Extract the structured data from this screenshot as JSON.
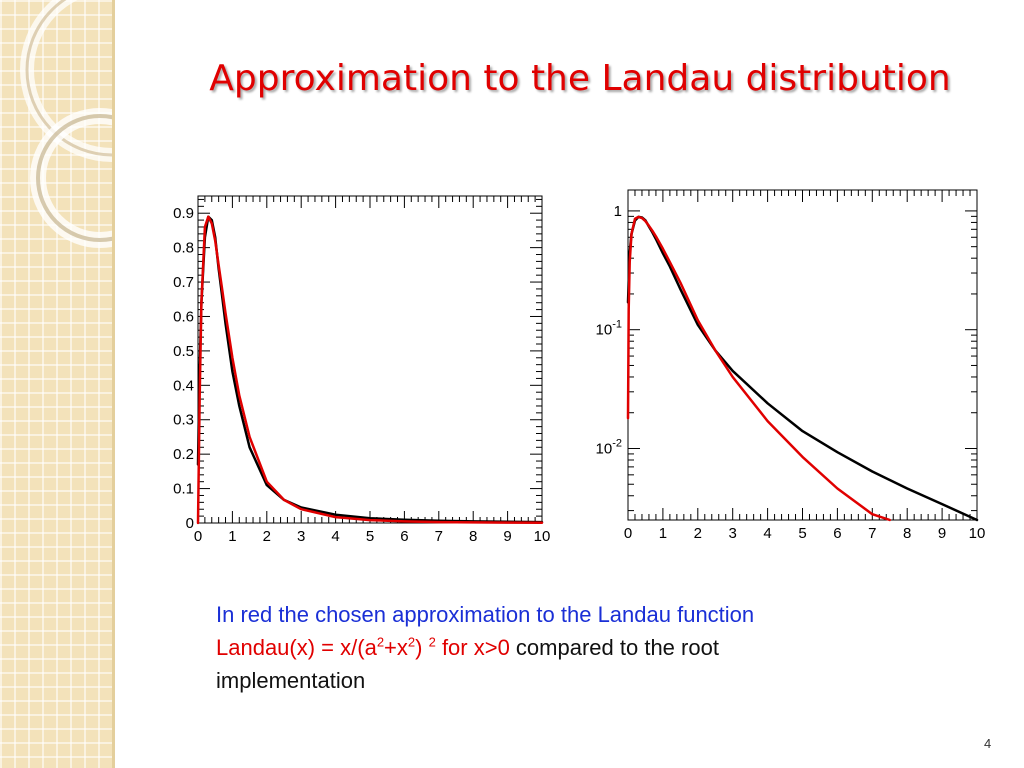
{
  "title": "Approximation to the Landau distribution",
  "caption": {
    "line1": "In red the chosen approximation to the Landau function",
    "formula_a": "Landau(x) = x/(a",
    "sup1": "2",
    "formula_b": "+x",
    "sup2": "2",
    "formula_c": ") ",
    "sup3": "2",
    "formula_d": "  for x>0",
    "line2_rest": "  compared to the root",
    "line3": "implementation"
  },
  "page_number": "4",
  "colors": {
    "approximation": "#e00000",
    "root": "#000000",
    "title": "#e00000",
    "caption_text": "#1a2fd6"
  },
  "chart_data": [
    {
      "type": "line",
      "title": "",
      "xlabel": "",
      "ylabel": "",
      "xlim": [
        0,
        10
      ],
      "ylim": [
        0,
        0.95
      ],
      "yscale": "linear",
      "x_ticks": [
        "0",
        "1",
        "2",
        "3",
        "4",
        "5",
        "6",
        "7",
        "8",
        "9",
        "10"
      ],
      "y_ticks": [
        "0",
        "0.1",
        "0.2",
        "0.3",
        "0.4",
        "0.5",
        "0.6",
        "0.7",
        "0.8",
        "0.9"
      ],
      "grid": false,
      "series": [
        {
          "color": "#000000",
          "x": [
            0,
            0.05,
            0.1,
            0.2,
            0.3,
            0.4,
            0.5,
            0.6,
            0.7,
            0.8,
            1.0,
            1.2,
            1.5,
            2.0,
            2.5,
            3.0,
            4.0,
            5.0,
            6.0,
            7.0,
            8.0,
            9.0,
            10.0
          ],
          "y": [
            0.17,
            0.45,
            0.64,
            0.83,
            0.89,
            0.88,
            0.83,
            0.74,
            0.66,
            0.58,
            0.44,
            0.34,
            0.22,
            0.11,
            0.067,
            0.045,
            0.024,
            0.014,
            0.0093,
            0.0064,
            0.0046,
            0.0034,
            0.0025
          ]
        },
        {
          "color": "#e00000",
          "x": [
            0,
            0.05,
            0.1,
            0.2,
            0.3,
            0.4,
            0.5,
            0.6,
            0.7,
            0.8,
            1.0,
            1.2,
            1.5,
            2.0,
            2.5,
            3.0,
            4.0,
            5.0,
            6.0,
            7.0,
            8.0,
            9.0,
            10.0
          ],
          "y": [
            0.0,
            0.37,
            0.64,
            0.86,
            0.89,
            0.87,
            0.82,
            0.75,
            0.68,
            0.61,
            0.48,
            0.37,
            0.25,
            0.12,
            0.067,
            0.04,
            0.017,
            0.0085,
            0.0046,
            0.0027,
            0.0017,
            0.0011,
            0.0007
          ]
        }
      ]
    },
    {
      "type": "line",
      "title": "",
      "xlabel": "",
      "ylabel": "",
      "xlim": [
        0,
        10
      ],
      "ylim": [
        0.0025,
        1.5
      ],
      "yscale": "log",
      "x_ticks": [
        "0",
        "1",
        "2",
        "3",
        "4",
        "5",
        "6",
        "7",
        "8",
        "9",
        "10"
      ],
      "y_ticks": [
        {
          "value": 1,
          "base": "1",
          "exp": ""
        },
        {
          "value": 0.1,
          "base": "10",
          "exp": "-1"
        },
        {
          "value": 0.01,
          "base": "10",
          "exp": "-2"
        }
      ],
      "grid": false,
      "series": [
        {
          "color": "#000000",
          "x": [
            0,
            0.05,
            0.1,
            0.2,
            0.3,
            0.4,
            0.5,
            0.6,
            0.7,
            0.8,
            1.0,
            1.2,
            1.5,
            2.0,
            2.5,
            3.0,
            4.0,
            5.0,
            6.0,
            7.0,
            8.0,
            9.0,
            10.0
          ],
          "y": [
            0.17,
            0.45,
            0.64,
            0.83,
            0.89,
            0.88,
            0.83,
            0.74,
            0.66,
            0.58,
            0.44,
            0.34,
            0.22,
            0.11,
            0.067,
            0.045,
            0.024,
            0.014,
            0.0093,
            0.0064,
            0.0046,
            0.0034,
            0.0025
          ]
        },
        {
          "color": "#e00000",
          "x": [
            0,
            0.02,
            0.05,
            0.1,
            0.2,
            0.3,
            0.4,
            0.5,
            0.6,
            0.7,
            0.8,
            1.0,
            1.2,
            1.5,
            2.0,
            2.5,
            3.0,
            4.0,
            5.0,
            6.0,
            7.0,
            7.5
          ],
          "y": [
            0.018,
            0.15,
            0.37,
            0.64,
            0.86,
            0.89,
            0.87,
            0.82,
            0.75,
            0.68,
            0.61,
            0.48,
            0.37,
            0.25,
            0.12,
            0.067,
            0.04,
            0.017,
            0.0085,
            0.0046,
            0.0028,
            0.0025
          ]
        }
      ]
    }
  ]
}
